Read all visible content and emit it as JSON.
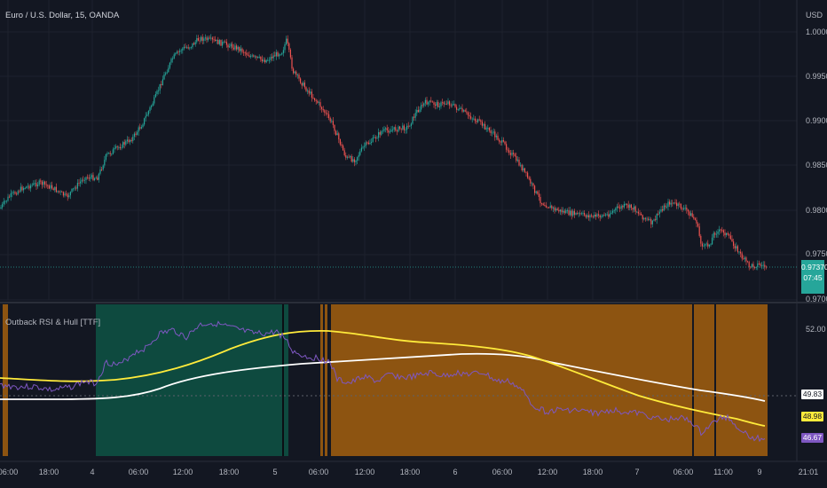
{
  "main_chart": {
    "title": "Euro / U.S. Dollar, 15, OANDA",
    "currency": "USD",
    "y_ticks": [
      "1.00000",
      "0.99500",
      "0.99000",
      "0.98500",
      "0.98000",
      "0.97500",
      "0.97000"
    ],
    "price_tag": {
      "value": "0.97370",
      "countdown": "07:45",
      "color": "#26a69a"
    },
    "up_color": "#26a69a",
    "down_color": "#ef5350"
  },
  "indicator": {
    "title": "Outback RSI & Hull [TTF]",
    "y_tick": "52.00",
    "tags": [
      {
        "value": "49.83",
        "bg": "#ffffff",
        "fg": "#131722"
      },
      {
        "value": "48.98",
        "bg": "#ffeb3b",
        "fg": "#131722"
      },
      {
        "value": "46.67",
        "bg": "#7e57c2",
        "fg": "#ffffff"
      }
    ],
    "colors": {
      "bull_bg": "#0e4a3f",
      "bear_bg": "#8d5411",
      "rsi": "#7e57c2",
      "hull_fast": "#ffeb3b",
      "hull_slow": "#ffffff"
    }
  },
  "x_axis": {
    "labels": [
      "06:00",
      "18:00",
      "4",
      "06:00",
      "12:00",
      "18:00",
      "5",
      "06:00",
      "12:00",
      "18:00",
      "6",
      "06:00",
      "12:00",
      "18:00",
      "7",
      "06:00",
      "11:00",
      "9",
      "21:01"
    ]
  }
}
